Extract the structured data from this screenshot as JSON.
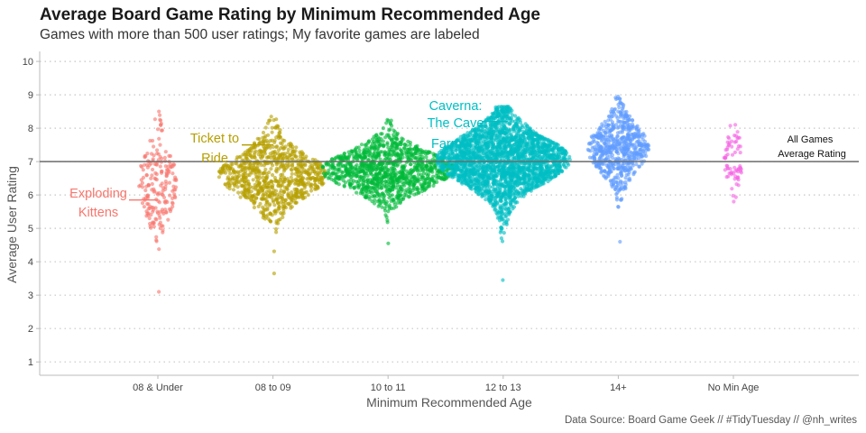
{
  "title": "Average Board Game Rating by Minimum Recommended Age",
  "subtitle": "Games with more than 500 user ratings; My favorite games are labeled",
  "caption": "Data Source: Board Game Geek // #TidyTuesday // @nh_writes",
  "chart_data": {
    "type": "scatter",
    "subtype": "beeswarm",
    "xlabel": "Minimum Recommended Age",
    "ylabel": "Average User Rating",
    "categories": [
      "08 & Under",
      "08 to 09",
      "10 to 11",
      "12 to 13",
      "14+",
      "No Min Age"
    ],
    "ylim": [
      0.6,
      10.3
    ],
    "yticks": [
      1,
      2,
      3,
      4,
      5,
      6,
      7,
      8,
      9,
      10
    ],
    "grid": "horizontal dotted",
    "legend": "none",
    "reference_line": {
      "value": 7.0,
      "label_line1": "All Games",
      "label_line2": "Average Rating"
    },
    "series": [
      {
        "category": "08 & Under",
        "color": "#F8766D",
        "n": 200,
        "center": 6.35,
        "sd": 0.8,
        "min": 3.1,
        "max": 8.5,
        "halfwidth": 20
      },
      {
        "category": "08 to 09",
        "color": "#B79F00",
        "n": 850,
        "center": 6.6,
        "sd": 0.6,
        "min": 3.65,
        "max": 8.35,
        "halfwidth": 58
      },
      {
        "category": "10 to 11",
        "color": "#00BA38",
        "n": 1150,
        "center": 6.75,
        "sd": 0.5,
        "min": 4.55,
        "max": 8.25,
        "halfwidth": 72
      },
      {
        "category": "12 to 13",
        "color": "#00BFC4",
        "n": 2500,
        "center": 7.05,
        "sd": 0.65,
        "min": 3.45,
        "max": 8.65,
        "halfwidth": 72
      },
      {
        "category": "14+",
        "color": "#619CFF",
        "n": 650,
        "center": 7.4,
        "sd": 0.6,
        "min": 4.6,
        "max": 8.95,
        "halfwidth": 32
      },
      {
        "category": "No Min Age",
        "color": "#F564E3",
        "n": 70,
        "center": 7.05,
        "sd": 0.55,
        "min": 5.8,
        "max": 8.1,
        "halfwidth": 8
      }
    ],
    "annotations": [
      {
        "category": "08 & Under",
        "line1": "Exploding",
        "line2": "Kittens",
        "color": "#F8766D",
        "rating": 5.85
      },
      {
        "category": "08 to 09",
        "line1": "Ticket to",
        "line2": "Ride",
        "color": "#B79F00",
        "rating": 7.5
      },
      {
        "category": "12 to 13",
        "line1": "Caverna:",
        "line2": "The Cave",
        "line3": "Farmers",
        "color": "#00BFC4",
        "rating": 8.2
      }
    ]
  }
}
